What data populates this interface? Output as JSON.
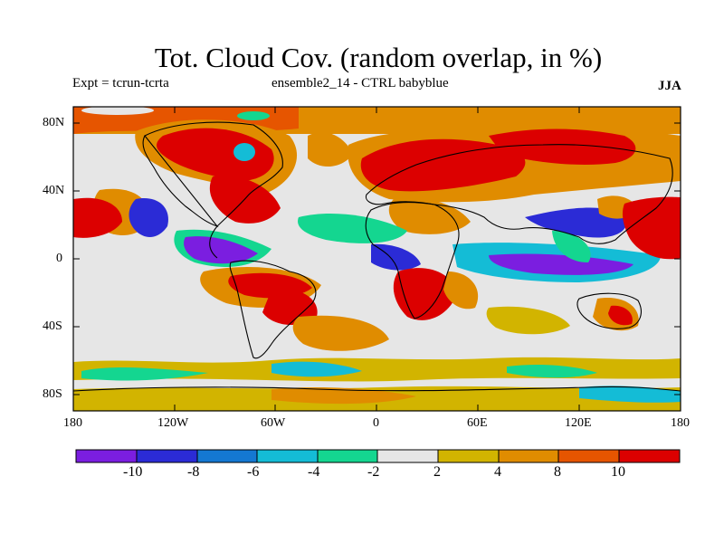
{
  "title": "Tot. Cloud Cov. (random overlap, in %)",
  "experiment": "Expt = tcrun-tcrta",
  "subtitle": "ensemble2_14 - CTRL babyblue",
  "season": "JJA",
  "lat_ticks": [
    "80N",
    "40N",
    "0",
    "40S",
    "80S"
  ],
  "lon_ticks": [
    "180",
    "120W",
    "60W",
    "0",
    "60E",
    "120E",
    "180"
  ],
  "colorbar": {
    "labels": [
      "-10",
      "-8",
      "-6",
      "-4",
      "-2",
      "2",
      "4",
      "8",
      "10"
    ],
    "colors": [
      "#7b1ee0",
      "#2b2bd6",
      "#1478d2",
      "#14bcd6",
      "#14d690",
      "#e6e6e6",
      "#d2b400",
      "#e08c00",
      "#e65500",
      "#dc0000"
    ]
  },
  "palette": {
    "neg_strong": "#7b1ee0",
    "neg_mid": "#2b2bd6",
    "neg_light": "#1478d2",
    "neg_cyan": "#14bcd6",
    "neg_green": "#14d690",
    "neutral": "#e6e6e6",
    "pos_yellow": "#d2b400",
    "pos_orange": "#e08c00",
    "pos_dark": "#e65500",
    "pos_red": "#dc0000"
  }
}
